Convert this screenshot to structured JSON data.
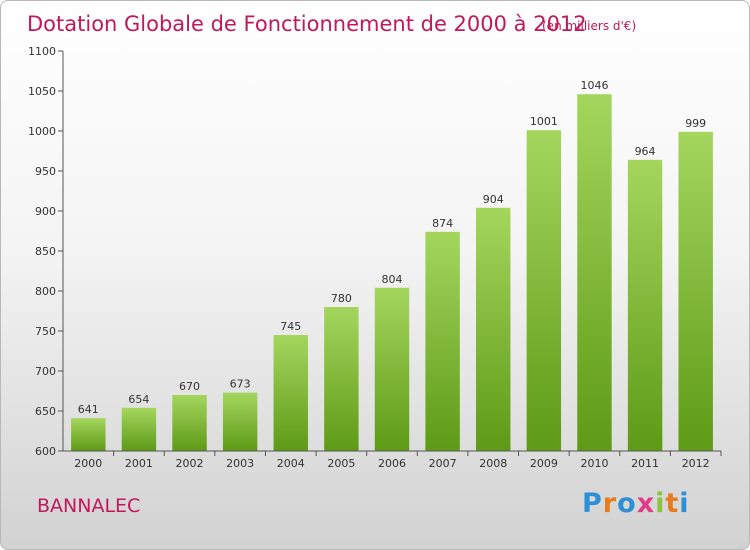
{
  "chart_data": {
    "type": "bar",
    "title": "Dotation Globale de Fonctionnement de 2000 à 2012",
    "subtitle": "(en milliers d'€)",
    "categories": [
      "2000",
      "2001",
      "2002",
      "2003",
      "2004",
      "2005",
      "2006",
      "2007",
      "2008",
      "2009",
      "2010",
      "2011",
      "2012"
    ],
    "values": [
      641,
      654,
      670,
      673,
      745,
      780,
      804,
      874,
      904,
      1001,
      1046,
      964,
      999
    ],
    "ylim": [
      600,
      1100
    ],
    "yticks": [
      600,
      650,
      700,
      750,
      800,
      850,
      900,
      950,
      1000,
      1050,
      1100
    ],
    "grid": false,
    "bar_color": "#8bc53f"
  },
  "place": "BANNALEC",
  "logo": {
    "text": "Proxiti",
    "letter_colors": [
      "#2f8fd6",
      "#e87b1e",
      "#2f8fd6",
      "#e03c8a",
      "#8bc53f",
      "#e87b1e",
      "#2f8fd6"
    ]
  }
}
